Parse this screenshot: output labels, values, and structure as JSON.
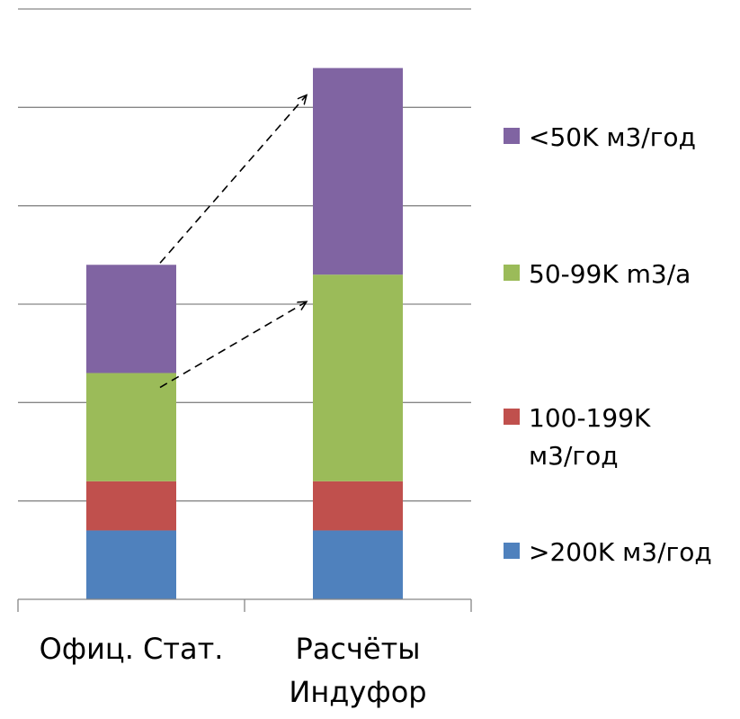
{
  "chart_data": {
    "type": "bar",
    "stacked": true,
    "categories": [
      "Офиц. Стат.",
      "Расчёты Индуфор"
    ],
    "series": [
      {
        "name": ">200K м3/год",
        "color": "#4F81BD",
        "values": [
          0.7,
          0.7
        ]
      },
      {
        "name": "100-199K м3/год",
        "color": "#C0504D",
        "values": [
          0.5,
          0.5
        ]
      },
      {
        "name": "50-99K m3/a",
        "color": "#9BBB59",
        "values": [
          1.1,
          2.1
        ]
      },
      {
        "name": "<50K м3/год",
        "color": "#8064A2",
        "values": [
          1.1,
          2.1
        ]
      }
    ],
    "ylim": [
      0,
      6
    ],
    "grid": true,
    "y_tick_labels_shown": false,
    "legend_position": "right",
    "annotations": [
      {
        "type": "dashed-arrow",
        "from_category": 0,
        "to_category": 1,
        "level": "top"
      },
      {
        "type": "dashed-arrow",
        "from_category": 0,
        "to_category": 1,
        "level": "top-of-green"
      }
    ],
    "title": "",
    "xlabel": "",
    "ylabel": ""
  }
}
